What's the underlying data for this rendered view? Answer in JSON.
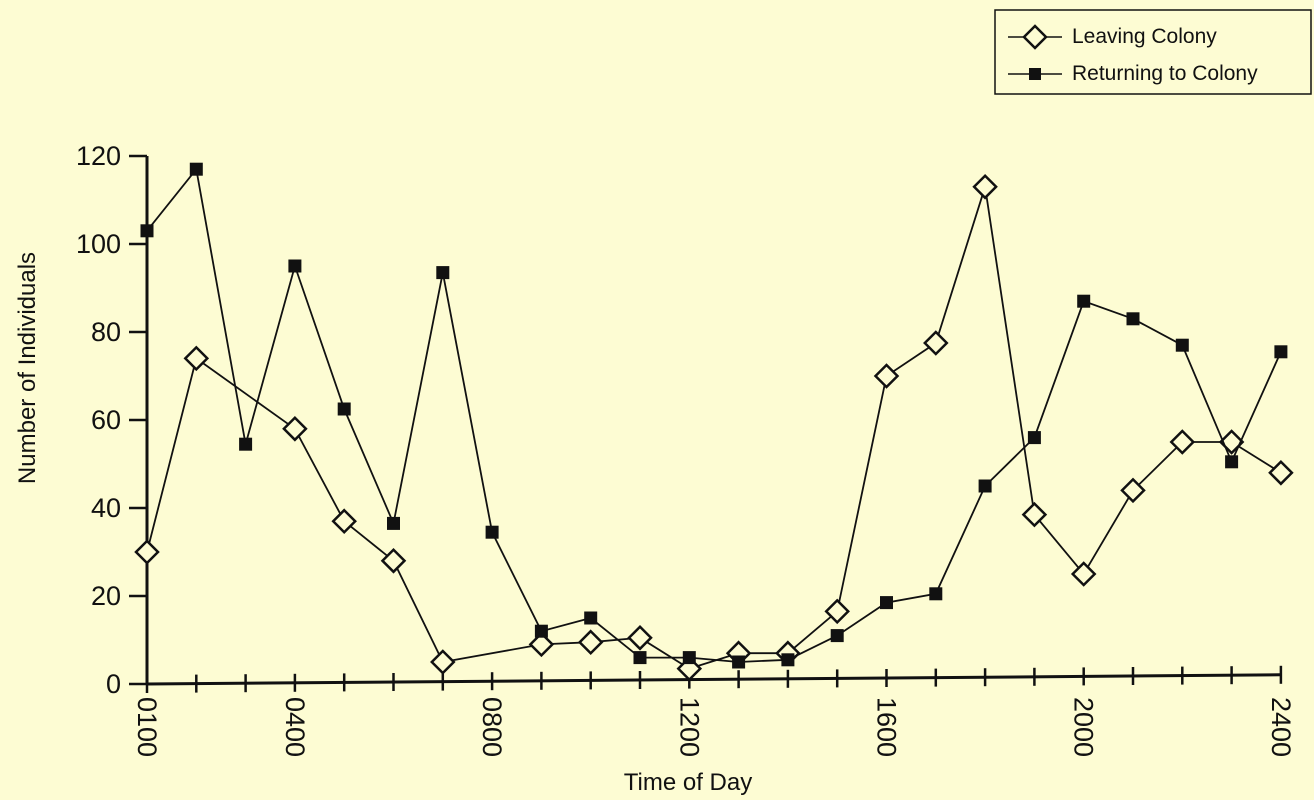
{
  "colors": {
    "background": "#fdfcd3",
    "line": "#111111",
    "leaving_marker_fill": "#fdfcd3",
    "returning_marker_fill": "#111111"
  },
  "chart_data": {
    "type": "line",
    "xlabel": "Time of Day",
    "ylabel": "Number of Individuals",
    "ylim": [
      0,
      120
    ],
    "yticks": [
      "0",
      "20",
      "40",
      "60",
      "80",
      "100",
      "120"
    ],
    "xtick_labels": [
      "0100",
      "0400",
      "0800",
      "1200",
      "1600",
      "2000",
      "2400"
    ],
    "x": [
      1,
      2,
      3,
      4,
      5,
      6,
      7,
      8,
      9,
      10,
      11,
      12,
      13,
      14,
      15,
      16,
      17,
      18,
      19,
      20,
      21,
      22,
      23,
      24
    ],
    "legend_position": "top-right",
    "grid": false,
    "series": [
      {
        "name": "Leaving Colony",
        "marker": "open-diamond",
        "points": [
          [
            1,
            30
          ],
          [
            2,
            74
          ],
          [
            4,
            58
          ],
          [
            5,
            37
          ],
          [
            6,
            28
          ],
          [
            7,
            5
          ],
          [
            9,
            9
          ],
          [
            10,
            9.5
          ],
          [
            11,
            10.5
          ],
          [
            12,
            3.5
          ],
          [
            13,
            7
          ],
          [
            14,
            7
          ],
          [
            15,
            16.5
          ],
          [
            16,
            70
          ],
          [
            17,
            77.5
          ],
          [
            18,
            113
          ],
          [
            19,
            38.5
          ],
          [
            20,
            25
          ],
          [
            21,
            44
          ],
          [
            22,
            55
          ],
          [
            23,
            55
          ],
          [
            24,
            48
          ]
        ]
      },
      {
        "name": "Returning to Colony",
        "marker": "filled-square",
        "points": [
          [
            1,
            103
          ],
          [
            2,
            117
          ],
          [
            3,
            54.5
          ],
          [
            4,
            95
          ],
          [
            5,
            62.5
          ],
          [
            6,
            36.5
          ],
          [
            7,
            93.5
          ],
          [
            8,
            34.5
          ],
          [
            9,
            12
          ],
          [
            10,
            15
          ],
          [
            11,
            6
          ],
          [
            12,
            6
          ],
          [
            13,
            5
          ],
          [
            14,
            5.5
          ],
          [
            15,
            11
          ],
          [
            16,
            18.5
          ],
          [
            17,
            20.5
          ],
          [
            18,
            45
          ],
          [
            19,
            56
          ],
          [
            20,
            87
          ],
          [
            21,
            83
          ],
          [
            22,
            77
          ],
          [
            23,
            50.5
          ],
          [
            24,
            75.5
          ]
        ]
      }
    ]
  }
}
